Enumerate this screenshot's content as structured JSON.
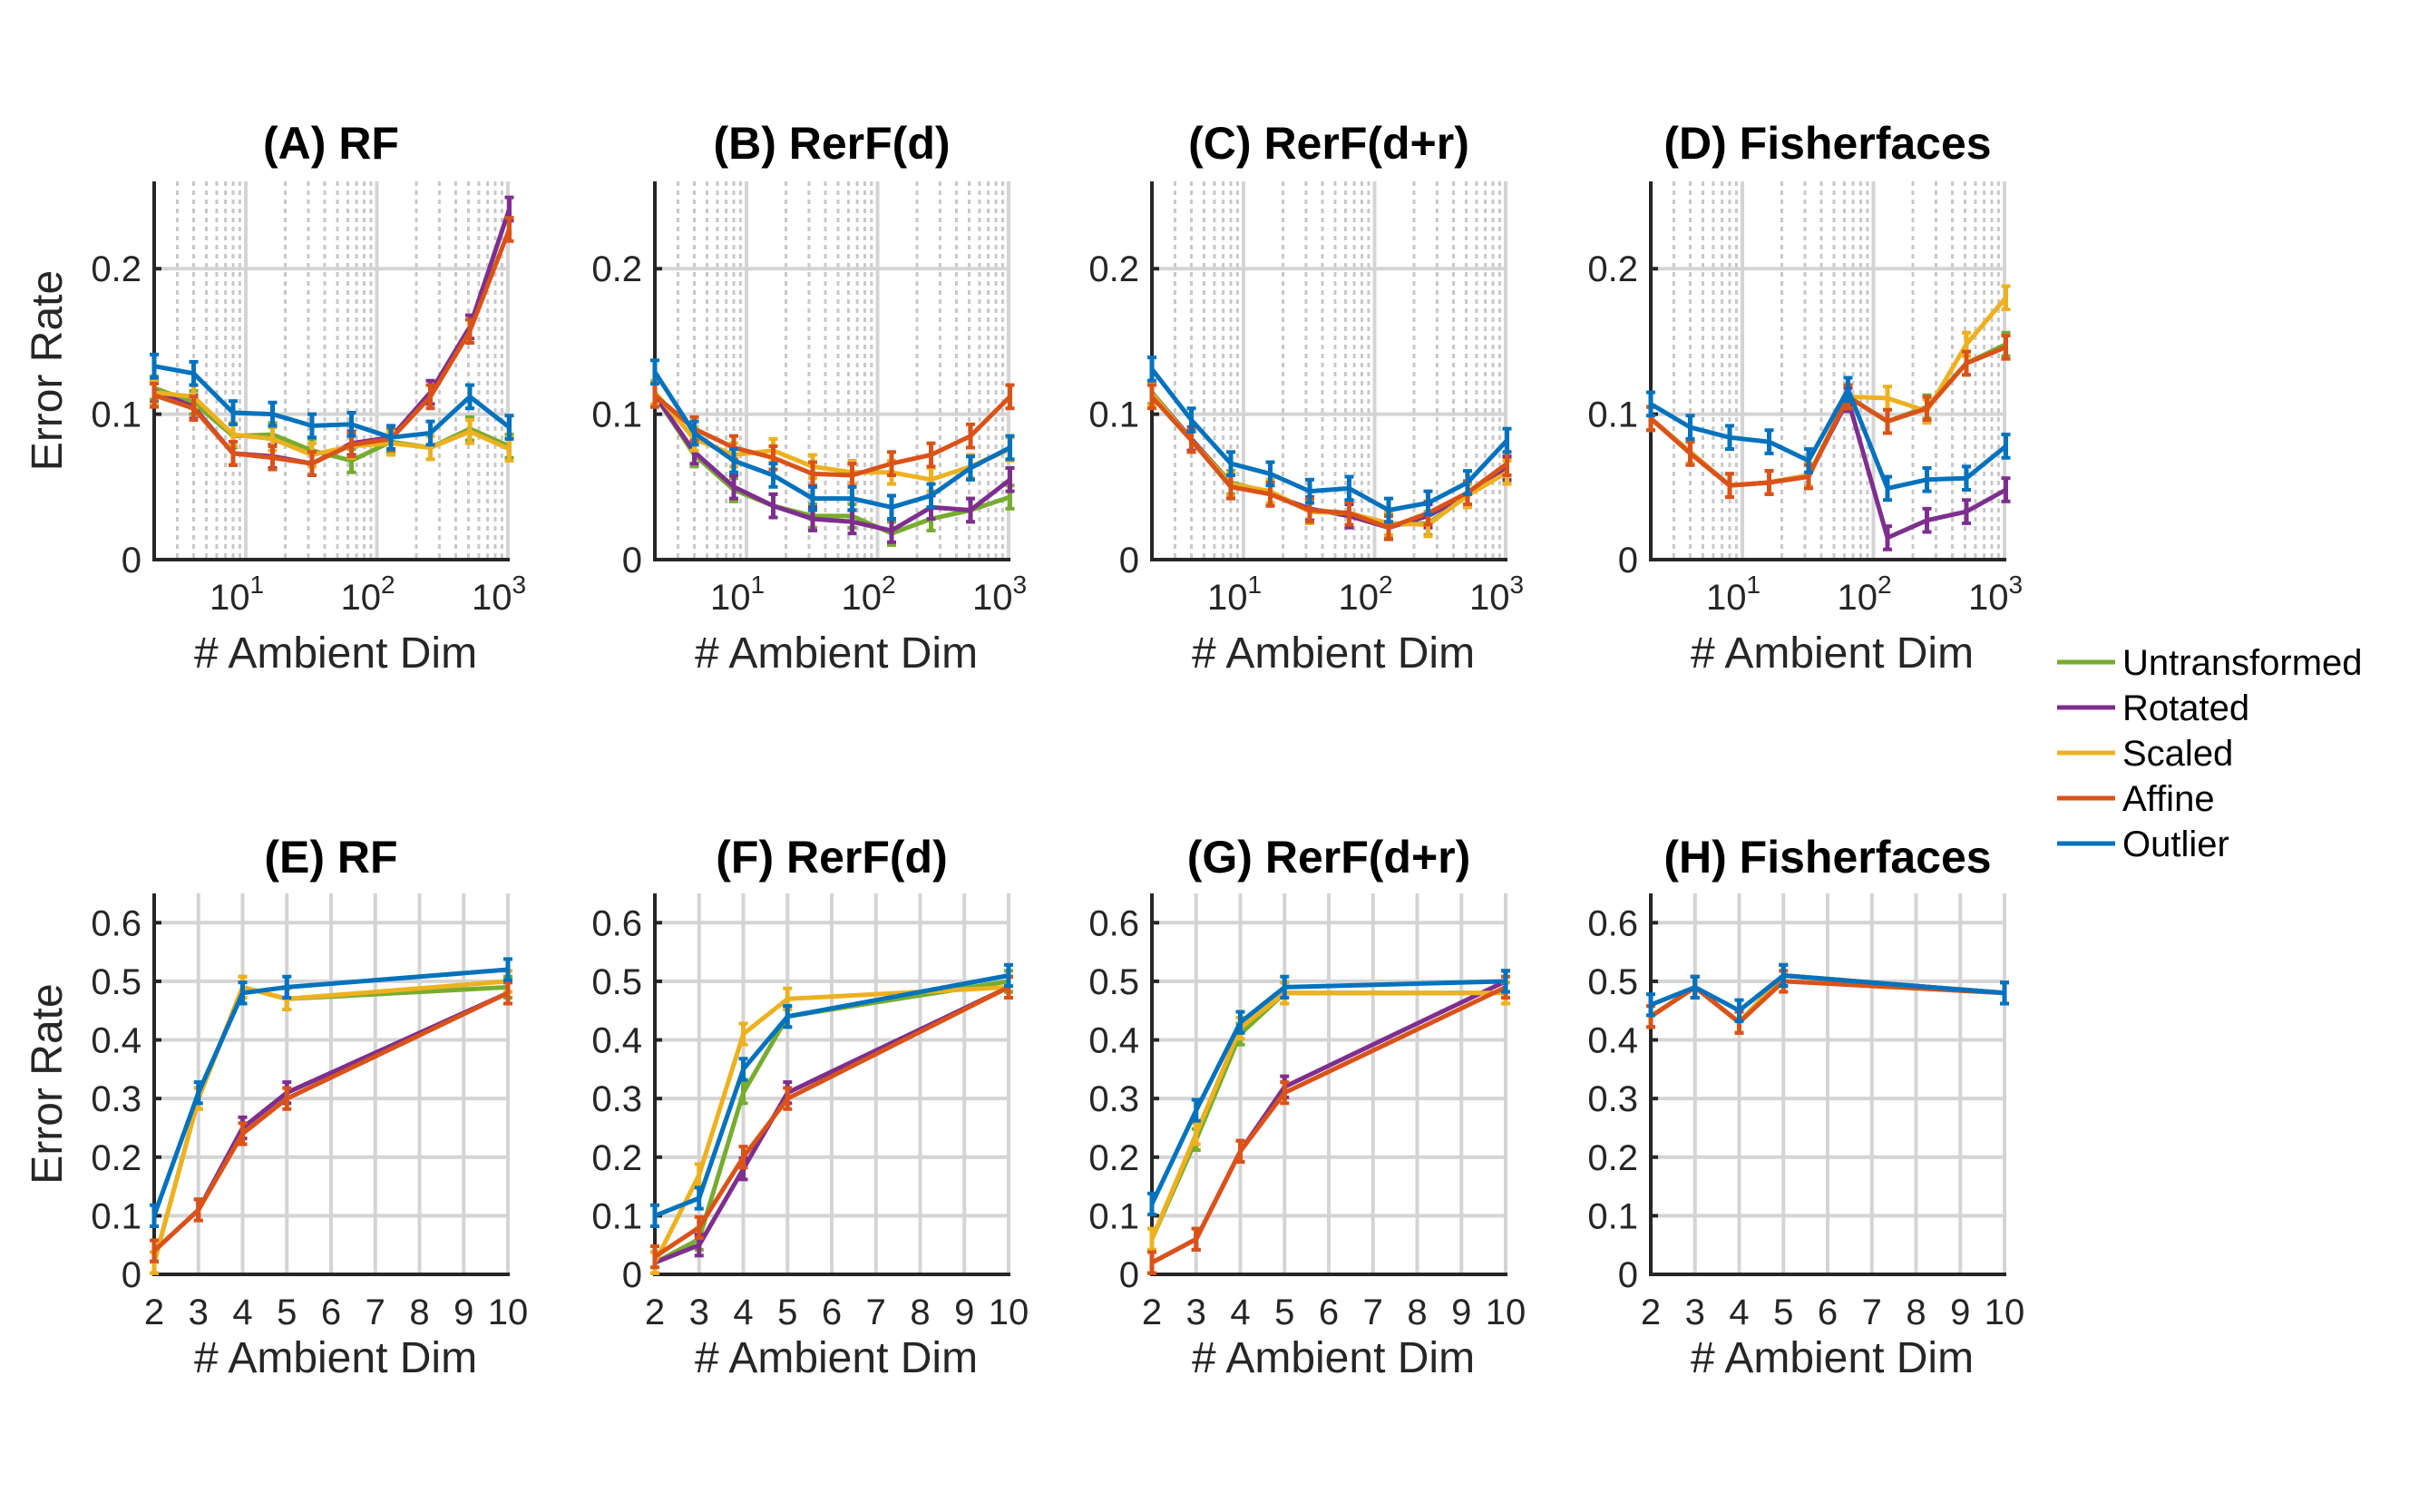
{
  "chart_data": [
    {
      "panel": "A",
      "title": "(A) RF",
      "type": "line",
      "xscale": "log",
      "xlabel": "# Ambient Dim",
      "ylabel": "Error Rate",
      "xlim": [
        2,
        1000
      ],
      "ylim": [
        0,
        0.26
      ],
      "yticks": [
        0,
        0.1,
        0.2
      ],
      "ytick_labels": [
        "0",
        "0.1",
        "0.2"
      ],
      "xtick_labels": [
        {
          "base": "10",
          "exp": "1"
        },
        {
          "base": "10",
          "exp": "2"
        },
        {
          "base": "10",
          "exp": "3"
        }
      ],
      "x": [
        2,
        4,
        8,
        16,
        32,
        64,
        128,
        256,
        512,
        1024
      ],
      "series": [
        {
          "name": "Untransformed",
          "values": [
            0.118,
            0.108,
            0.085,
            0.086,
            0.075,
            0.068,
            0.081,
            0.077,
            0.09,
            0.078
          ]
        },
        {
          "name": "Rotated",
          "values": [
            0.116,
            0.105,
            0.073,
            0.071,
            0.066,
            0.08,
            0.084,
            0.115,
            0.16,
            0.241
          ]
        },
        {
          "name": "Scaled",
          "values": [
            0.115,
            0.112,
            0.086,
            0.083,
            0.072,
            0.078,
            0.08,
            0.077,
            0.088,
            0.076
          ]
        },
        {
          "name": "Affine",
          "values": [
            0.113,
            0.104,
            0.073,
            0.07,
            0.066,
            0.079,
            0.083,
            0.112,
            0.157,
            0.227
          ]
        },
        {
          "name": "Outlier",
          "values": [
            0.133,
            0.128,
            0.101,
            0.1,
            0.092,
            0.093,
            0.084,
            0.087,
            0.112,
            0.091
          ]
        }
      ]
    },
    {
      "panel": "B",
      "title": "(B) RerF(d)",
      "type": "line",
      "xscale": "log",
      "xlabel": "# Ambient Dim",
      "ylabel": "",
      "xlim": [
        2,
        1000
      ],
      "ylim": [
        0,
        0.26
      ],
      "yticks": [
        0,
        0.1,
        0.2
      ],
      "ytick_labels": [
        "0",
        "0.1",
        "0.2"
      ],
      "xtick_labels": [
        {
          "base": "10",
          "exp": "1"
        },
        {
          "base": "10",
          "exp": "2"
        },
        {
          "base": "10",
          "exp": "3"
        }
      ],
      "x": [
        2,
        4,
        8,
        16,
        32,
        64,
        128,
        256,
        512,
        1024
      ],
      "series": [
        {
          "name": "Untransformed",
          "values": [
            0.113,
            0.072,
            0.048,
            0.037,
            0.03,
            0.03,
            0.018,
            0.028,
            0.034,
            0.043
          ]
        },
        {
          "name": "Rotated",
          "values": [
            0.113,
            0.074,
            0.05,
            0.037,
            0.028,
            0.026,
            0.02,
            0.036,
            0.034,
            0.055
          ]
        },
        {
          "name": "Scaled",
          "values": [
            0.115,
            0.083,
            0.072,
            0.075,
            0.064,
            0.06,
            0.06,
            0.055,
            0.064,
            0.076
          ]
        },
        {
          "name": "Affine",
          "values": [
            0.113,
            0.09,
            0.077,
            0.07,
            0.059,
            0.058,
            0.066,
            0.072,
            0.085,
            0.112
          ]
        },
        {
          "name": "Outlier",
          "values": [
            0.129,
            0.087,
            0.068,
            0.058,
            0.042,
            0.042,
            0.036,
            0.044,
            0.063,
            0.077
          ]
        }
      ]
    },
    {
      "panel": "C",
      "title": "(C) RerF(d+r)",
      "type": "line",
      "xscale": "log",
      "xlabel": "# Ambient Dim",
      "ylabel": "",
      "xlim": [
        2,
        1000
      ],
      "ylim": [
        0,
        0.26
      ],
      "yticks": [
        0,
        0.1,
        0.2
      ],
      "ytick_labels": [
        "0",
        "0.1",
        "0.2"
      ],
      "xtick_labels": [
        {
          "base": "10",
          "exp": "1"
        },
        {
          "base": "10",
          "exp": "2"
        },
        {
          "base": "10",
          "exp": "3"
        }
      ],
      "x": [
        2,
        4,
        8,
        16,
        32,
        64,
        128,
        256,
        512,
        1024
      ],
      "series": [
        {
          "name": "Untransformed",
          "values": [
            0.115,
            0.083,
            0.053,
            0.046,
            0.034,
            0.032,
            0.024,
            0.025,
            0.044,
            0.061
          ]
        },
        {
          "name": "Rotated",
          "values": [
            0.114,
            0.083,
            0.052,
            0.045,
            0.035,
            0.03,
            0.022,
            0.03,
            0.045,
            0.063
          ]
        },
        {
          "name": "Scaled",
          "values": [
            0.114,
            0.082,
            0.052,
            0.047,
            0.033,
            0.032,
            0.025,
            0.024,
            0.044,
            0.06
          ]
        },
        {
          "name": "Affine",
          "values": [
            0.112,
            0.082,
            0.05,
            0.045,
            0.034,
            0.032,
            0.022,
            0.032,
            0.046,
            0.066
          ]
        },
        {
          "name": "Outlier",
          "values": [
            0.131,
            0.096,
            0.066,
            0.059,
            0.047,
            0.049,
            0.034,
            0.039,
            0.053,
            0.082
          ]
        }
      ]
    },
    {
      "panel": "D",
      "title": "(D) Fisherfaces",
      "type": "line",
      "xscale": "log",
      "xlabel": "# Ambient Dim",
      "ylabel": "",
      "xlim": [
        2,
        1000
      ],
      "ylim": [
        0,
        0.26
      ],
      "yticks": [
        0,
        0.1,
        0.2
      ],
      "ytick_labels": [
        "0",
        "0.1",
        "0.2"
      ],
      "xtick_labels": [
        {
          "base": "10",
          "exp": "1"
        },
        {
          "base": "10",
          "exp": "2"
        },
        {
          "base": "10",
          "exp": "3"
        }
      ],
      "x": [
        2,
        4,
        8,
        16,
        32,
        64,
        128,
        256,
        512,
        1024
      ],
      "series": [
        {
          "name": "Untransformed",
          "values": [
            0.097,
            0.074,
            0.051,
            0.053,
            0.058,
            0.112,
            0.095,
            0.105,
            0.135,
            0.148
          ]
        },
        {
          "name": "Rotated",
          "values": [
            0.097,
            0.074,
            0.051,
            0.053,
            0.058,
            0.11,
            0.015,
            0.027,
            0.033,
            0.048
          ]
        },
        {
          "name": "Scaled",
          "values": [
            0.097,
            0.074,
            0.051,
            0.053,
            0.058,
            0.112,
            0.111,
            0.102,
            0.148,
            0.18
          ]
        },
        {
          "name": "Affine",
          "values": [
            0.097,
            0.073,
            0.051,
            0.053,
            0.057,
            0.112,
            0.095,
            0.104,
            0.135,
            0.146
          ]
        },
        {
          "name": "Outlier",
          "values": [
            0.107,
            0.091,
            0.084,
            0.081,
            0.068,
            0.117,
            0.049,
            0.055,
            0.056,
            0.078
          ]
        }
      ]
    },
    {
      "panel": "E",
      "title": "(E) RF",
      "type": "line",
      "xscale": "linear",
      "xlabel": "# Ambient Dim",
      "ylabel": "Error Rate",
      "xlim": [
        2,
        10
      ],
      "ylim": [
        0,
        0.65
      ],
      "yticks": [
        0,
        0.1,
        0.2,
        0.3,
        0.4,
        0.5,
        0.6
      ],
      "ytick_labels": [
        "0",
        "0.1",
        "0.2",
        "0.3",
        "0.4",
        "0.5",
        "0.6"
      ],
      "xticks": [
        2,
        3,
        4,
        5,
        6,
        7,
        8,
        9,
        10
      ],
      "xtick_labels": [
        "2",
        "3",
        "4",
        "5",
        "6",
        "7",
        "8",
        "9",
        "10"
      ],
      "x": [
        2,
        3,
        4,
        5,
        10
      ],
      "series": [
        {
          "name": "Untransformed",
          "values": [
            0.02,
            0.3,
            0.49,
            0.47,
            0.49
          ]
        },
        {
          "name": "Rotated",
          "values": [
            0.04,
            0.11,
            0.25,
            0.31,
            0.48
          ]
        },
        {
          "name": "Scaled",
          "values": [
            0.02,
            0.3,
            0.49,
            0.47,
            0.5
          ]
        },
        {
          "name": "Affine",
          "values": [
            0.04,
            0.11,
            0.24,
            0.3,
            0.48
          ]
        },
        {
          "name": "Outlier",
          "values": [
            0.1,
            0.31,
            0.48,
            0.49,
            0.52
          ]
        }
      ]
    },
    {
      "panel": "F",
      "title": "(F) RerF(d)",
      "type": "line",
      "xscale": "linear",
      "xlabel": "# Ambient Dim",
      "ylabel": "",
      "xlim": [
        2,
        10
      ],
      "ylim": [
        0,
        0.65
      ],
      "yticks": [
        0,
        0.1,
        0.2,
        0.3,
        0.4,
        0.5,
        0.6
      ],
      "ytick_labels": [
        "0",
        "0.1",
        "0.2",
        "0.3",
        "0.4",
        "0.5",
        "0.6"
      ],
      "xticks": [
        2,
        3,
        4,
        5,
        6,
        7,
        8,
        9,
        10
      ],
      "xtick_labels": [
        "2",
        "3",
        "4",
        "5",
        "6",
        "7",
        "8",
        "9",
        "10"
      ],
      "x": [
        2,
        3,
        4,
        5,
        10
      ],
      "series": [
        {
          "name": "Untransformed",
          "values": [
            0.02,
            0.06,
            0.31,
            0.44,
            0.5
          ]
        },
        {
          "name": "Rotated",
          "values": [
            0.02,
            0.05,
            0.18,
            0.31,
            0.49
          ]
        },
        {
          "name": "Scaled",
          "values": [
            0.02,
            0.17,
            0.41,
            0.47,
            0.49
          ]
        },
        {
          "name": "Affine",
          "values": [
            0.03,
            0.08,
            0.2,
            0.3,
            0.49
          ]
        },
        {
          "name": "Outlier",
          "values": [
            0.1,
            0.13,
            0.35,
            0.44,
            0.51
          ]
        }
      ]
    },
    {
      "panel": "G",
      "title": "(G) RerF(d+r)",
      "type": "line",
      "xscale": "linear",
      "xlabel": "# Ambient Dim",
      "ylabel": "",
      "xlim": [
        2,
        10
      ],
      "ylim": [
        0,
        0.65
      ],
      "yticks": [
        0,
        0.1,
        0.2,
        0.3,
        0.4,
        0.5,
        0.6
      ],
      "ytick_labels": [
        "0",
        "0.1",
        "0.2",
        "0.3",
        "0.4",
        "0.5",
        "0.6"
      ],
      "xticks": [
        2,
        3,
        4,
        5,
        6,
        7,
        8,
        9,
        10
      ],
      "xtick_labels": [
        "2",
        "3",
        "4",
        "5",
        "6",
        "7",
        "8",
        "9",
        "10"
      ],
      "x": [
        2,
        3,
        4,
        5,
        10
      ],
      "series": [
        {
          "name": "Untransformed",
          "values": [
            0.06,
            0.23,
            0.41,
            0.48,
            0.48
          ]
        },
        {
          "name": "Rotated",
          "values": [
            0.02,
            0.06,
            0.21,
            0.32,
            0.5
          ]
        },
        {
          "name": "Scaled",
          "values": [
            0.06,
            0.24,
            0.42,
            0.48,
            0.48
          ]
        },
        {
          "name": "Affine",
          "values": [
            0.02,
            0.06,
            0.21,
            0.31,
            0.49
          ]
        },
        {
          "name": "Outlier",
          "values": [
            0.12,
            0.28,
            0.43,
            0.49,
            0.5
          ]
        }
      ]
    },
    {
      "panel": "H",
      "title": "(H) Fisherfaces",
      "type": "line",
      "xscale": "linear",
      "xlabel": "# Ambient Dim",
      "ylabel": "",
      "xlim": [
        2,
        10
      ],
      "ylim": [
        0,
        0.65
      ],
      "yticks": [
        0,
        0.1,
        0.2,
        0.3,
        0.4,
        0.5,
        0.6
      ],
      "ytick_labels": [
        "0",
        "0.1",
        "0.2",
        "0.3",
        "0.4",
        "0.5",
        "0.6"
      ],
      "xticks": [
        2,
        3,
        4,
        5,
        6,
        7,
        8,
        9,
        10
      ],
      "xtick_labels": [
        "2",
        "3",
        "4",
        "5",
        "6",
        "7",
        "8",
        "9",
        "10"
      ],
      "x": [
        2,
        3,
        4,
        5,
        10
      ],
      "series": [
        {
          "name": "Untransformed",
          "values": [
            0.44,
            0.49,
            0.43,
            0.51,
            0.48
          ]
        },
        {
          "name": "Rotated",
          "values": [
            0.44,
            0.49,
            0.43,
            0.51,
            0.48
          ]
        },
        {
          "name": "Scaled",
          "values": [
            0.44,
            0.49,
            0.43,
            0.51,
            0.48
          ]
        },
        {
          "name": "Affine",
          "values": [
            0.44,
            0.49,
            0.43,
            0.5,
            0.48
          ]
        },
        {
          "name": "Outlier",
          "values": [
            0.46,
            0.49,
            0.45,
            0.51,
            0.48
          ]
        }
      ]
    }
  ],
  "legend": {
    "placement": "right-middle",
    "entries": [
      {
        "name": "Untransformed",
        "color": "#77AC30"
      },
      {
        "name": "Rotated",
        "color": "#7E2F8E"
      },
      {
        "name": "Scaled",
        "color": "#EDB120"
      },
      {
        "name": "Affine",
        "color": "#D95319"
      },
      {
        "name": "Outlier",
        "color": "#0072BD"
      }
    ]
  },
  "colors": {
    "Untransformed": "#77AC30",
    "Rotated": "#7E2F8E",
    "Scaled": "#EDB120",
    "Affine": "#D95319",
    "Outlier": "#0072BD"
  }
}
